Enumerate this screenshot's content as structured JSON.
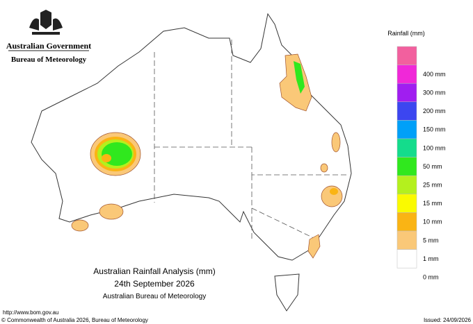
{
  "header": {
    "line1": "Australian Government",
    "line2": "Bureau of Meteorology"
  },
  "legend": {
    "title": "Rainfall (mm)",
    "colors": [
      "#f2609e",
      "#f028d8",
      "#a01ef0",
      "#3c46f0",
      "#00a0f8",
      "#14dc8c",
      "#30e81e",
      "#b4f01e",
      "#fafa00",
      "#fab414",
      "#fac878",
      "#ffffff"
    ],
    "labels": [
      "400 mm",
      "300 mm",
      "200 mm",
      "150 mm",
      "100 mm",
      "50 mm",
      "25 mm",
      "15 mm",
      "10 mm",
      "5 mm",
      "1 mm",
      "0 mm"
    ]
  },
  "caption": {
    "title": "Australian Rainfall Analysis (mm)",
    "date": "24th September 2026",
    "source": "Australian Bureau of Meteorology"
  },
  "footer": {
    "url": "http://www.bom.gov.au",
    "copyright": "© Commonwealth of Australia 2026, Bureau of Meteorology",
    "issued": "Issued: 24/09/2026"
  }
}
